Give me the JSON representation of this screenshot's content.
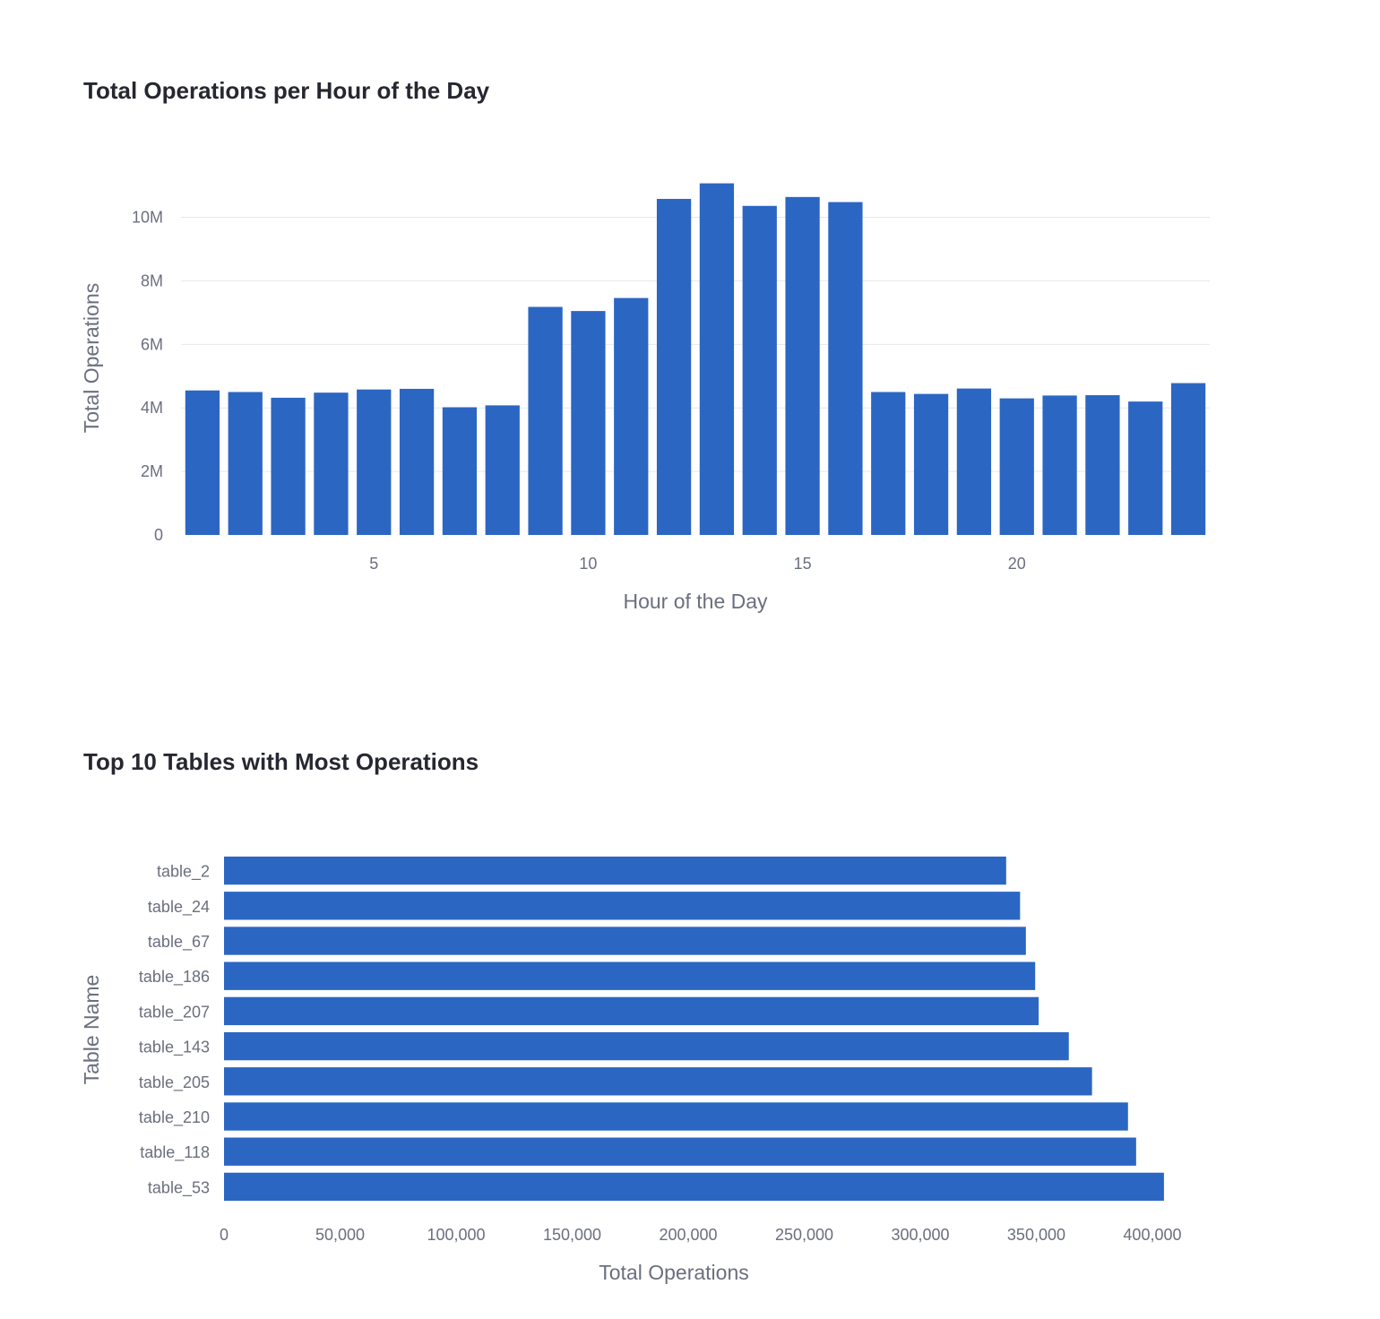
{
  "colors": {
    "bar": "#2b66c3",
    "grid": "#e6e8ec",
    "axis_text": "#6b6f7e",
    "title": "#262730"
  },
  "chart_data": [
    {
      "type": "bar",
      "title": "Total Operations per Hour of the Day",
      "xlabel": "Hour of the Day",
      "ylabel": "Total Operations",
      "x": [
        1,
        2,
        3,
        4,
        5,
        6,
        7,
        8,
        9,
        10,
        11,
        12,
        13,
        14,
        15,
        16,
        17,
        18,
        19,
        20,
        21,
        22,
        23,
        24
      ],
      "values": [
        4550000,
        4500000,
        4320000,
        4480000,
        4580000,
        4600000,
        4020000,
        4080000,
        7180000,
        7050000,
        7460000,
        10580000,
        11070000,
        10360000,
        10640000,
        10480000,
        4500000,
        4440000,
        4610000,
        4300000,
        4390000,
        4400000,
        4200000,
        4780000
      ],
      "xticks": [
        5,
        10,
        15,
        20
      ],
      "xtick_labels": [
        "5",
        "10",
        "15",
        "20"
      ],
      "yticks": [
        0,
        2000000,
        4000000,
        6000000,
        8000000,
        10000000
      ],
      "ytick_labels": [
        "0",
        "2M",
        "4M",
        "6M",
        "8M",
        "10M"
      ],
      "xlim": [
        0.5,
        24.5
      ],
      "ylim": [
        0,
        11200000
      ],
      "grid": true
    },
    {
      "type": "bar",
      "orientation": "horizontal",
      "title": "Top 10 Tables with Most Operations",
      "xlabel": "Total Operations",
      "ylabel": "Table Name",
      "categories": [
        "table_2",
        "table_24",
        "table_67",
        "table_186",
        "table_207",
        "table_143",
        "table_205",
        "table_210",
        "table_118",
        "table_53"
      ],
      "values": [
        337000,
        343000,
        345500,
        349500,
        351000,
        364000,
        374000,
        389500,
        393000,
        405000
      ],
      "xticks": [
        0,
        50000,
        100000,
        150000,
        200000,
        250000,
        300000,
        350000,
        400000
      ],
      "xtick_labels": [
        "0",
        "50,000",
        "100,000",
        "150,000",
        "200,000",
        "250,000",
        "300,000",
        "350,000",
        "400,000"
      ],
      "xlim": [
        0,
        417000
      ],
      "grid": false
    }
  ]
}
